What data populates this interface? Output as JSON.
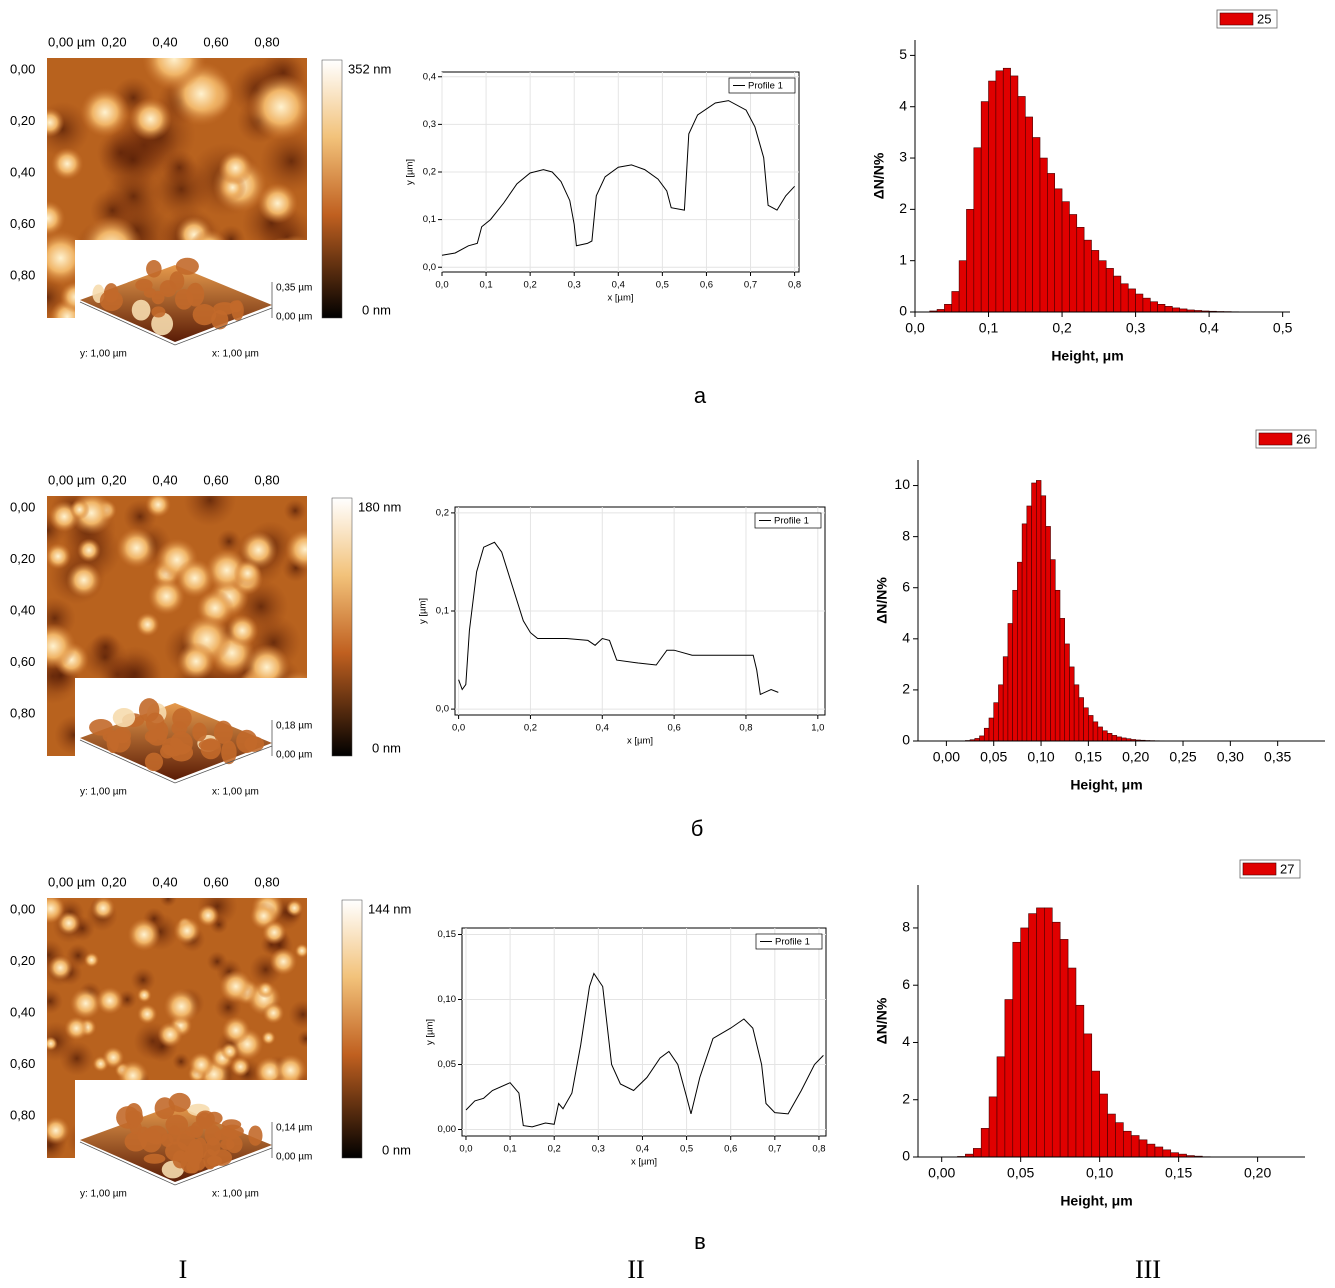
{
  "afm_images": [
    {
      "x_ticks": [
        "0,00 µm",
        "0,20",
        "0,40",
        "0,60",
        "0,80"
      ],
      "y_ticks": [
        "0,00",
        "0,20",
        "0,40",
        "0,60",
        "0,80"
      ],
      "colorbar_max": "352 nm",
      "colorbar_min": "0 nm",
      "z_max": "0,35 µm",
      "z_min": "0,00 µm",
      "y_size": "y: 1,00 µm",
      "x_size": "x: 1,00 µm"
    },
    {
      "x_ticks": [
        "0,00 µm",
        "0,20",
        "0,40",
        "0,60",
        "0,80"
      ],
      "y_ticks": [
        "0,00",
        "0,20",
        "0,40",
        "0,60",
        "0,80"
      ],
      "colorbar_max": "180 nm",
      "colorbar_min": "0 nm",
      "z_max": "0,18 µm",
      "z_min": "0,00 µm",
      "y_size": "y: 1,00 µm",
      "x_size": "x: 1,00 µm"
    },
    {
      "x_ticks": [
        "0,00 µm",
        "0,20",
        "0,40",
        "0,60",
        "0,80"
      ],
      "y_ticks": [
        "0,00",
        "0,20",
        "0,40",
        "0,60",
        "0,80"
      ],
      "colorbar_max": "144 nm",
      "colorbar_min": "0 nm",
      "z_max": "0,14 µm",
      "z_min": "0,00 µm",
      "y_size": "y: 1,00 µm",
      "x_size": "x: 1,00 µm"
    }
  ],
  "panel_labels": [
    "а",
    "б",
    "в"
  ],
  "column_labels": [
    "I",
    "II",
    "III"
  ],
  "chart_data": [
    {
      "type": "line",
      "x_label": "x [µm]",
      "y_label": "y [µm]",
      "grid": true,
      "legend": "top-right",
      "x": [
        0,
        0.03,
        0.06,
        0.08,
        0.09,
        0.11,
        0.14,
        0.17,
        0.2,
        0.23,
        0.25,
        0.27,
        0.29,
        0.3,
        0.305,
        0.33,
        0.34,
        0.35,
        0.37,
        0.4,
        0.43,
        0.46,
        0.49,
        0.51,
        0.52,
        0.55,
        0.56,
        0.58,
        0.62,
        0.65,
        0.69,
        0.71,
        0.73,
        0.74,
        0.76,
        0.78,
        0.8
      ],
      "series": [
        {
          "name": "Profile 1",
          "color": "#000000",
          "values": [
            0.025,
            0.03,
            0.045,
            0.05,
            0.085,
            0.1,
            0.135,
            0.175,
            0.198,
            0.205,
            0.2,
            0.18,
            0.14,
            0.09,
            0.045,
            0.05,
            0.055,
            0.15,
            0.19,
            0.21,
            0.215,
            0.205,
            0.185,
            0.16,
            0.125,
            0.12,
            0.28,
            0.32,
            0.345,
            0.35,
            0.33,
            0.295,
            0.23,
            0.13,
            0.12,
            0.15,
            0.17
          ]
        }
      ],
      "xlim": [
        0,
        0.81
      ],
      "ylim": [
        -0.01,
        0.41
      ],
      "xticks": [
        {
          "value": 0,
          "label": "0,0"
        },
        {
          "value": 0.1,
          "label": "0,1"
        },
        {
          "value": 0.2,
          "label": "0,2"
        },
        {
          "value": 0.3,
          "label": "0,3"
        },
        {
          "value": 0.4,
          "label": "0,4"
        },
        {
          "value": 0.5,
          "label": "0,5"
        },
        {
          "value": 0.6,
          "label": "0,6"
        },
        {
          "value": 0.7,
          "label": "0,7"
        },
        {
          "value": 0.8,
          "label": "0,8"
        }
      ],
      "yticks": [
        {
          "value": 0,
          "label": "0,0"
        },
        {
          "value": 0.1,
          "label": "0,1"
        },
        {
          "value": 0.2,
          "label": "0,2"
        },
        {
          "value": 0.3,
          "label": "0,3"
        },
        {
          "value": 0.4,
          "label": "0,4"
        }
      ]
    },
    {
      "type": "histogram",
      "x_label": "Height, μm",
      "y_label": "ΔN/N%",
      "legend": "top-right",
      "bins": [
        0.02,
        0.03,
        0.04,
        0.05,
        0.06,
        0.07,
        0.08,
        0.09,
        0.1,
        0.11,
        0.12,
        0.13,
        0.14,
        0.15,
        0.16,
        0.17,
        0.18,
        0.19,
        0.2,
        0.21,
        0.22,
        0.23,
        0.24,
        0.25,
        0.26,
        0.27,
        0.28,
        0.29,
        0.3,
        0.31,
        0.32,
        0.33,
        0.34,
        0.35,
        0.36,
        0.37,
        0.38,
        0.39,
        0.4,
        0.41,
        0.42,
        0.43,
        0.44,
        0.45,
        0.46
      ],
      "series": [
        {
          "name": "25",
          "color": "#e00000",
          "values": [
            0.02,
            0.05,
            0.15,
            0.4,
            1.0,
            2.0,
            3.2,
            4.1,
            4.5,
            4.7,
            4.75,
            4.6,
            4.2,
            3.8,
            3.4,
            3.0,
            2.7,
            2.4,
            2.15,
            1.9,
            1.65,
            1.4,
            1.2,
            1.0,
            0.85,
            0.7,
            0.55,
            0.45,
            0.35,
            0.27,
            0.2,
            0.15,
            0.11,
            0.08,
            0.06,
            0.04,
            0.03,
            0.02,
            0.015,
            0.01,
            0.008,
            0.005,
            0.003,
            0.002
          ]
        }
      ],
      "xlim": [
        0,
        0.51
      ],
      "ylim": [
        0,
        5.3
      ],
      "xticks": [
        {
          "value": 0,
          "label": "0,0"
        },
        {
          "value": 0.1,
          "label": "0,1"
        },
        {
          "value": 0.2,
          "label": "0,2"
        },
        {
          "value": 0.3,
          "label": "0,3"
        },
        {
          "value": 0.4,
          "label": "0,4"
        },
        {
          "value": 0.5,
          "label": "0,5"
        }
      ],
      "yticks": [
        0,
        1,
        2,
        3,
        4,
        5
      ]
    },
    {
      "type": "line",
      "x_label": "x [µm]",
      "y_label": "y [µm]",
      "grid": true,
      "legend": "top-right",
      "x": [
        0,
        0.01,
        0.02,
        0.03,
        0.05,
        0.07,
        0.1,
        0.12,
        0.15,
        0.18,
        0.2,
        0.22,
        0.3,
        0.36,
        0.38,
        0.4,
        0.42,
        0.44,
        0.5,
        0.55,
        0.58,
        0.6,
        0.65,
        0.75,
        0.82,
        0.83,
        0.84,
        0.87,
        0.89
      ],
      "series": [
        {
          "name": "Profile 1",
          "color": "#000000",
          "values": [
            0.03,
            0.02,
            0.025,
            0.08,
            0.14,
            0.165,
            0.17,
            0.16,
            0.125,
            0.09,
            0.078,
            0.072,
            0.072,
            0.07,
            0.065,
            0.072,
            0.07,
            0.05,
            0.047,
            0.045,
            0.06,
            0.06,
            0.055,
            0.055,
            0.055,
            0.04,
            0.015,
            0.02,
            0.017
          ]
        }
      ],
      "xlim": [
        -0.01,
        1.02
      ],
      "ylim": [
        -0.006,
        0.206
      ],
      "xticks": [
        {
          "value": 0,
          "label": "0,0"
        },
        {
          "value": 0.2,
          "label": "0,2"
        },
        {
          "value": 0.4,
          "label": "0,4"
        },
        {
          "value": 0.6,
          "label": "0,6"
        },
        {
          "value": 0.8,
          "label": "0,8"
        },
        {
          "value": 1,
          "label": "1,0"
        }
      ],
      "yticks": [
        {
          "value": 0,
          "label": "0,0"
        },
        {
          "value": 0.1,
          "label": "0,1"
        },
        {
          "value": 0.2,
          "label": "0,2"
        }
      ]
    },
    {
      "type": "histogram",
      "x_label": "Height, μm",
      "y_label": "ΔN/N%",
      "legend": "top-right",
      "bins": [
        0.02,
        0.025,
        0.03,
        0.035,
        0.04,
        0.045,
        0.05,
        0.055,
        0.06,
        0.065,
        0.07,
        0.075,
        0.08,
        0.085,
        0.09,
        0.095,
        0.1,
        0.105,
        0.11,
        0.115,
        0.12,
        0.125,
        0.13,
        0.135,
        0.14,
        0.145,
        0.15,
        0.155,
        0.16,
        0.165,
        0.17,
        0.175,
        0.18,
        0.185,
        0.19,
        0.195,
        0.2,
        0.205,
        0.21,
        0.215,
        0.22,
        0.225,
        0.23,
        0.235,
        0.24,
        0.245
      ],
      "series": [
        {
          "name": "26",
          "color": "#e00000",
          "values": [
            0.02,
            0.05,
            0.1,
            0.2,
            0.5,
            0.9,
            1.5,
            2.2,
            3.3,
            4.6,
            5.9,
            7.0,
            8.5,
            9.2,
            10.1,
            10.2,
            9.6,
            8.4,
            7.1,
            5.9,
            4.8,
            3.8,
            2.9,
            2.2,
            1.7,
            1.3,
            1.0,
            0.75,
            0.55,
            0.4,
            0.3,
            0.22,
            0.16,
            0.12,
            0.09,
            0.06,
            0.04,
            0.03,
            0.02,
            0.015,
            0.01,
            0.008,
            0.005,
            0.003,
            0.002
          ]
        }
      ],
      "xlim": [
        -0.03,
        0.4
      ],
      "ylim": [
        0,
        11
      ],
      "xticks": [
        {
          "value": 0,
          "label": "0,00"
        },
        {
          "value": 0.05,
          "label": "0,05"
        },
        {
          "value": 0.1,
          "label": "0,10"
        },
        {
          "value": 0.15,
          "label": "0,15"
        },
        {
          "value": 0.2,
          "label": "0,20"
        },
        {
          "value": 0.25,
          "label": "0,25"
        },
        {
          "value": 0.3,
          "label": "0,30"
        },
        {
          "value": 0.35,
          "label": "0,35"
        }
      ],
      "yticks": [
        0,
        2,
        4,
        6,
        8,
        10
      ]
    },
    {
      "type": "line",
      "x_label": "x [µm]",
      "y_label": "y [µm]",
      "grid": true,
      "legend": "top-right",
      "x": [
        0,
        0.02,
        0.04,
        0.06,
        0.1,
        0.12,
        0.13,
        0.15,
        0.18,
        0.2,
        0.21,
        0.22,
        0.24,
        0.26,
        0.28,
        0.29,
        0.31,
        0.33,
        0.35,
        0.38,
        0.41,
        0.44,
        0.46,
        0.48,
        0.5,
        0.51,
        0.53,
        0.56,
        0.6,
        0.63,
        0.65,
        0.67,
        0.68,
        0.7,
        0.73,
        0.76,
        0.79,
        0.81
      ],
      "series": [
        {
          "name": "Profile 1",
          "color": "#000000",
          "values": [
            0.015,
            0.022,
            0.024,
            0.03,
            0.036,
            0.028,
            0.003,
            0.002,
            0.005,
            0.004,
            0.02,
            0.016,
            0.028,
            0.065,
            0.11,
            0.12,
            0.11,
            0.05,
            0.035,
            0.03,
            0.04,
            0.055,
            0.06,
            0.05,
            0.025,
            0.012,
            0.04,
            0.07,
            0.078,
            0.085,
            0.078,
            0.05,
            0.02,
            0.013,
            0.012,
            0.03,
            0.05,
            0.057
          ]
        }
      ],
      "xlim": [
        -0.009,
        0.816
      ],
      "ylim": [
        -0.005,
        0.155
      ],
      "xticks": [
        {
          "value": 0,
          "label": "0,0"
        },
        {
          "value": 0.1,
          "label": "0,1"
        },
        {
          "value": 0.2,
          "label": "0,2"
        },
        {
          "value": 0.3,
          "label": "0,3"
        },
        {
          "value": 0.4,
          "label": "0,4"
        },
        {
          "value": 0.5,
          "label": "0,5"
        },
        {
          "value": 0.6,
          "label": "0,6"
        },
        {
          "value": 0.7,
          "label": "0,7"
        },
        {
          "value": 0.8,
          "label": "0,8"
        }
      ],
      "yticks": [
        {
          "value": 0,
          "label": "0,00"
        },
        {
          "value": 0.05,
          "label": "0,05"
        },
        {
          "value": 0.1,
          "label": "0,10"
        },
        {
          "value": 0.15,
          "label": "0,15"
        }
      ]
    },
    {
      "type": "histogram",
      "x_label": "Height, μm",
      "y_label": "ΔN/N%",
      "legend": "top-right",
      "bins": [
        0.01,
        0.015,
        0.02,
        0.025,
        0.03,
        0.035,
        0.04,
        0.045,
        0.05,
        0.055,
        0.06,
        0.065,
        0.07,
        0.075,
        0.08,
        0.085,
        0.09,
        0.095,
        0.1,
        0.105,
        0.11,
        0.115,
        0.12,
        0.125,
        0.13,
        0.135,
        0.14,
        0.145,
        0.15,
        0.155,
        0.16,
        0.165,
        0.17
      ],
      "series": [
        {
          "name": "27",
          "color": "#e00000",
          "values": [
            0.02,
            0.1,
            0.3,
            1.0,
            2.1,
            3.5,
            5.5,
            7.5,
            8.0,
            8.5,
            8.7,
            8.7,
            8.2,
            7.6,
            6.6,
            5.3,
            4.3,
            3.0,
            2.2,
            1.5,
            1.2,
            0.9,
            0.75,
            0.6,
            0.45,
            0.35,
            0.25,
            0.15,
            0.1,
            0.05,
            0.03,
            0.01
          ]
        }
      ],
      "xlim": [
        -0.015,
        0.23
      ],
      "ylim": [
        0,
        9.5
      ],
      "xticks": [
        {
          "value": 0,
          "label": "0,00"
        },
        {
          "value": 0.05,
          "label": "0,05"
        },
        {
          "value": 0.1,
          "label": "0,10"
        },
        {
          "value": 0.15,
          "label": "0,15"
        },
        {
          "value": 0.2,
          "label": "0,20"
        }
      ],
      "yticks": [
        0,
        2,
        4,
        6,
        8
      ]
    }
  ]
}
